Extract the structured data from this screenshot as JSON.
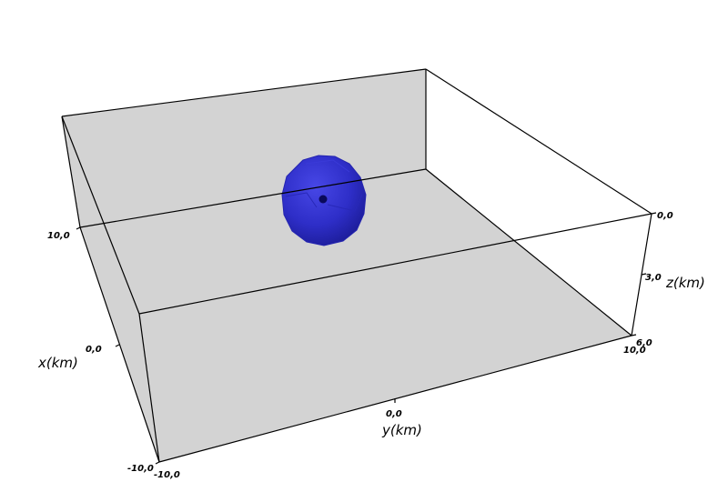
{
  "axes": {
    "x": {
      "label": "x(km)",
      "ticks": [
        "10,0",
        "0,0",
        "-10,0"
      ]
    },
    "y": {
      "label": "y(km)",
      "ticks": [
        "-10,0",
        "0,0",
        "10,0"
      ]
    },
    "z": {
      "label": "z(km)",
      "ticks": [
        "0,0",
        "3,0",
        "6,0"
      ]
    }
  },
  "colors": {
    "background": "#ffffff",
    "floor": "#d3d3d3",
    "edge": "#000000",
    "sphere": "#2e2ec8",
    "center_point": "#0a0a5a"
  }
}
